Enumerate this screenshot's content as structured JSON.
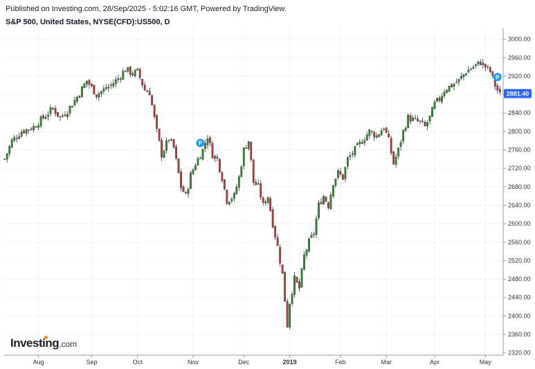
{
  "header": {
    "published": "Published on Investing.com, 28/Sep/2025 - 5:02:16 GMT, Powered by TradingView.",
    "symbol": "S&P 500, United States, NYSE(CFD):US500, D"
  },
  "logo": {
    "brand": "Investing",
    "suffix": ".com"
  },
  "colors": {
    "up": "#2e8b2e",
    "down": "#b33a3a",
    "price_tag": "#2962ff",
    "marker": "#2196f3"
  },
  "chart_data": {
    "type": "candlestick",
    "y_ticks": [
      "3000.00",
      "2960.00",
      "2920.00",
      "2880.00",
      "2840.00",
      "2800.00",
      "2760.00",
      "2720.00",
      "2680.00",
      "2640.00",
      "2600.00",
      "2560.00",
      "2520.00",
      "2480.00",
      "2440.00",
      "2400.00",
      "2360.00",
      "2320.00"
    ],
    "ylim": [
      2315,
      3025
    ],
    "x_ticks": [
      {
        "label": "Aug",
        "idx": 14,
        "bold": false
      },
      {
        "label": "Sep",
        "idx": 36,
        "bold": false
      },
      {
        "label": "Oct",
        "idx": 55,
        "bold": false
      },
      {
        "label": "Nov",
        "idx": 78,
        "bold": false
      },
      {
        "label": "Dec",
        "idx": 99,
        "bold": false
      },
      {
        "label": "2019",
        "idx": 118,
        "bold": true
      },
      {
        "label": "Feb",
        "idx": 139,
        "bold": false
      },
      {
        "label": "Mar",
        "idx": 158,
        "bold": false
      },
      {
        "label": "Apr",
        "idx": 178,
        "bold": false
      },
      {
        "label": "May",
        "idx": 199,
        "bold": false
      }
    ],
    "last_price": "2881.40",
    "last_value": 2881.4,
    "markers": [
      {
        "idx": 81,
        "value": 2775,
        "label": "P"
      },
      {
        "idx": 204,
        "value": 2918,
        "label": "P"
      }
    ],
    "anchors": [
      [
        0,
        2740
      ],
      [
        3,
        2780
      ],
      [
        7,
        2800
      ],
      [
        12,
        2810
      ],
      [
        14,
        2820
      ],
      [
        17,
        2835
      ],
      [
        20,
        2850
      ],
      [
        23,
        2830
      ],
      [
        26,
        2845
      ],
      [
        30,
        2875
      ],
      [
        34,
        2910
      ],
      [
        38,
        2880
      ],
      [
        41,
        2890
      ],
      [
        44,
        2900
      ],
      [
        47,
        2915
      ],
      [
        50,
        2935
      ],
      [
        53,
        2925
      ],
      [
        55,
        2930
      ],
      [
        58,
        2890
      ],
      [
        60,
        2885
      ],
      [
        63,
        2800
      ],
      [
        65,
        2750
      ],
      [
        68,
        2785
      ],
      [
        70,
        2765
      ],
      [
        73,
        2680
      ],
      [
        75,
        2660
      ],
      [
        77,
        2705
      ],
      [
        79,
        2730
      ],
      [
        82,
        2760
      ],
      [
        84,
        2790
      ],
      [
        86,
        2750
      ],
      [
        88,
        2740
      ],
      [
        90,
        2700
      ],
      [
        92,
        2650
      ],
      [
        95,
        2660
      ],
      [
        97,
        2700
      ],
      [
        99,
        2760
      ],
      [
        101,
        2780
      ],
      [
        103,
        2690
      ],
      [
        105,
        2680
      ],
      [
        107,
        2640
      ],
      [
        109,
        2660
      ],
      [
        111,
        2600
      ],
      [
        113,
        2550
      ],
      [
        115,
        2490
      ],
      [
        117,
        2380
      ],
      [
        118,
        2430
      ],
      [
        120,
        2480
      ],
      [
        122,
        2460
      ],
      [
        124,
        2530
      ],
      [
        126,
        2560
      ],
      [
        128,
        2580
      ],
      [
        130,
        2640
      ],
      [
        132,
        2660
      ],
      [
        134,
        2640
      ],
      [
        136,
        2690
      ],
      [
        138,
        2710
      ],
      [
        140,
        2700
      ],
      [
        142,
        2740
      ],
      [
        145,
        2760
      ],
      [
        148,
        2780
      ],
      [
        151,
        2800
      ],
      [
        154,
        2790
      ],
      [
        157,
        2810
      ],
      [
        159,
        2780
      ],
      [
        161,
        2730
      ],
      [
        163,
        2760
      ],
      [
        165,
        2800
      ],
      [
        167,
        2830
      ],
      [
        169,
        2825
      ],
      [
        172,
        2820
      ],
      [
        174,
        2810
      ],
      [
        176,
        2830
      ],
      [
        178,
        2860
      ],
      [
        180,
        2870
      ],
      [
        182,
        2890
      ],
      [
        185,
        2900
      ],
      [
        188,
        2910
      ],
      [
        191,
        2930
      ],
      [
        194,
        2940
      ],
      [
        197,
        2950
      ],
      [
        199,
        2940
      ],
      [
        201,
        2930
      ],
      [
        203,
        2900
      ],
      [
        205,
        2880
      ]
    ]
  }
}
